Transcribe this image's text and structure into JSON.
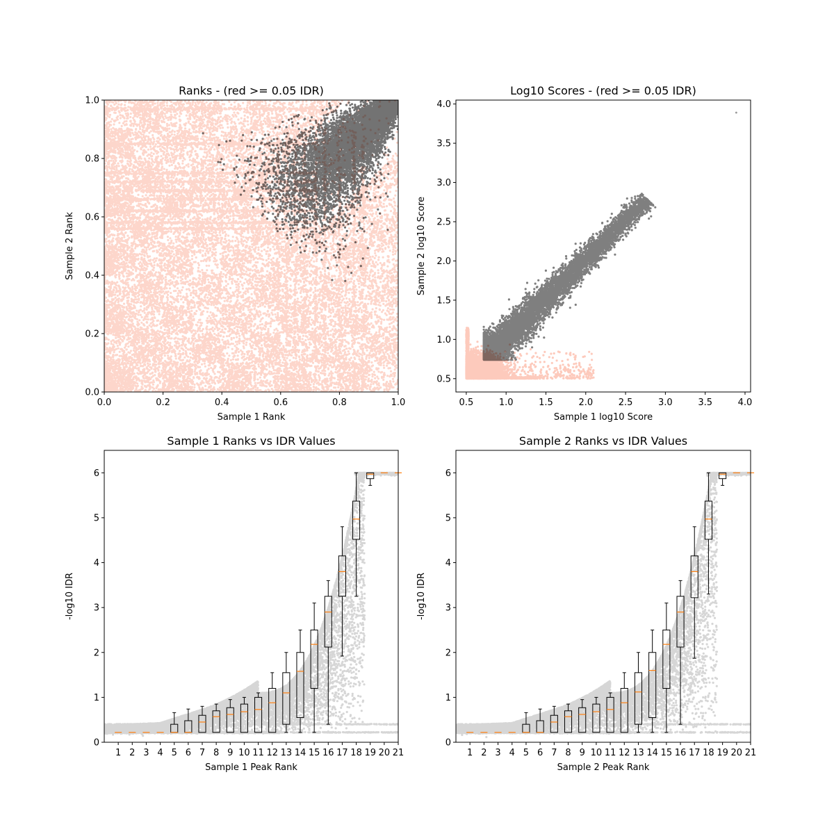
{
  "colors": {
    "red": "#FA8A6A",
    "black": "#000000",
    "median": "#FF7F0E"
  },
  "chart_data": [
    {
      "id": "ranks",
      "type": "scatter",
      "title": "Ranks - (red >= 0.05 IDR)",
      "xlabel": "Sample 1 Rank",
      "ylabel": "Sample 2 Rank",
      "xlim": [
        0,
        1
      ],
      "ylim": [
        0,
        1
      ],
      "xticks": [
        "0.0",
        "0.2",
        "0.4",
        "0.6",
        "0.8",
        "1.0"
      ],
      "yticks": [
        "0.0",
        "0.2",
        "0.4",
        "0.6",
        "0.8",
        "1.0"
      ],
      "series": [
        {
          "color": "red",
          "pattern": "rank grid blocks, density decreasing with rank"
        },
        {
          "color": "black",
          "pattern": "diagonal wedge from (0.55, 0.55) to (1.0, 1.0)"
        }
      ]
    },
    {
      "id": "scores",
      "type": "scatter",
      "title": "Log10 Scores - (red >= 0.05 IDR)",
      "xlabel": "Sample 1 log10 Score",
      "ylabel": "Sample 2 log10 Score",
      "xlim": [
        0.37,
        4.07
      ],
      "ylim": [
        0.33,
        4.05
      ],
      "xticks": [
        "0.5",
        "1.0",
        "1.5",
        "2.0",
        "2.5",
        "3.0",
        "3.5",
        "4.0"
      ],
      "yticks": [
        "0.5",
        "1.0",
        "1.5",
        "2.0",
        "2.5",
        "3.0",
        "3.5",
        "4.0"
      ],
      "series": [
        {
          "color": "red",
          "pattern": "cluster near (0.5-1.2, 0.5-1.0)"
        },
        {
          "color": "black",
          "pattern": "diagonal band from (0.72, 0.72) to (2.8, 2.8)"
        }
      ],
      "outlier": [
        3.89,
        3.89
      ]
    },
    {
      "id": "idr1",
      "type": "scatter",
      "title": "Sample 1 Ranks vs IDR Values",
      "xlabel": "Sample 1 Peak Rank",
      "ylabel": "-log10 IDR",
      "xlim": [
        0,
        21
      ],
      "ylim": [
        0,
        6.5
      ],
      "xticks": [
        "1",
        "2",
        "3",
        "4",
        "5",
        "6",
        "7",
        "8",
        "9",
        "10",
        "11",
        "12",
        "13",
        "14",
        "15",
        "16",
        "17",
        "18",
        "19",
        "20",
        "21"
      ],
      "yticks": [
        "0",
        "1",
        "2",
        "3",
        "4",
        "5",
        "6"
      ],
      "boxes": [
        {
          "x": 1,
          "q1": 0.22,
          "med": 0.22,
          "q3": 0.22,
          "lo": 0.22,
          "hi": 0.22
        },
        {
          "x": 2,
          "q1": 0.22,
          "med": 0.22,
          "q3": 0.22,
          "lo": 0.22,
          "hi": 0.22
        },
        {
          "x": 3,
          "q1": 0.22,
          "med": 0.22,
          "q3": 0.22,
          "lo": 0.22,
          "hi": 0.22
        },
        {
          "x": 4,
          "q1": 0.22,
          "med": 0.22,
          "q3": 0.22,
          "lo": 0.22,
          "hi": 0.22
        },
        {
          "x": 5,
          "q1": 0.22,
          "med": 0.22,
          "q3": 0.4,
          "lo": 0.22,
          "hi": 0.66
        },
        {
          "x": 6,
          "q1": 0.22,
          "med": 0.22,
          "q3": 0.48,
          "lo": 0.22,
          "hi": 0.74
        },
        {
          "x": 7,
          "q1": 0.22,
          "med": 0.45,
          "q3": 0.6,
          "lo": 0.22,
          "hi": 0.8
        },
        {
          "x": 8,
          "q1": 0.22,
          "med": 0.57,
          "q3": 0.7,
          "lo": 0.22,
          "hi": 0.85
        },
        {
          "x": 9,
          "q1": 0.22,
          "med": 0.62,
          "q3": 0.77,
          "lo": 0.22,
          "hi": 0.95
        },
        {
          "x": 10,
          "q1": 0.22,
          "med": 0.68,
          "q3": 0.85,
          "lo": 0.22,
          "hi": 1.0
        },
        {
          "x": 11,
          "q1": 0.22,
          "med": 0.73,
          "q3": 1.0,
          "lo": 0.22,
          "hi": 1.1
        },
        {
          "x": 12,
          "q1": 0.22,
          "med": 0.88,
          "q3": 1.2,
          "lo": 0.22,
          "hi": 1.55
        },
        {
          "x": 13,
          "q1": 0.4,
          "med": 1.1,
          "q3": 1.55,
          "lo": 0.22,
          "hi": 2.0
        },
        {
          "x": 14,
          "q1": 0.55,
          "med": 1.58,
          "q3": 2.0,
          "lo": 0.22,
          "hi": 2.5
        },
        {
          "x": 15,
          "q1": 1.2,
          "med": 2.18,
          "q3": 2.5,
          "lo": 0.22,
          "hi": 3.1
        },
        {
          "x": 16,
          "q1": 2.12,
          "med": 2.9,
          "q3": 3.25,
          "lo": 0.4,
          "hi": 3.6
        },
        {
          "x": 17,
          "q1": 3.25,
          "med": 3.8,
          "q3": 4.15,
          "lo": 1.92,
          "hi": 4.8
        },
        {
          "x": 18,
          "q1": 4.52,
          "med": 4.97,
          "q3": 5.37,
          "lo": 3.25,
          "hi": 6.0
        },
        {
          "x": 19,
          "q1": 5.87,
          "med": 5.97,
          "q3": 6.0,
          "lo": 5.72,
          "hi": 6.0
        },
        {
          "x": 20,
          "q1": 6.0,
          "med": 6.0,
          "q3": 6.0,
          "lo": 6.0,
          "hi": 6.0
        },
        {
          "x": 21,
          "q1": 6.0,
          "med": 6.0,
          "q3": 6.0,
          "lo": 6.0,
          "hi": 6.0
        }
      ]
    },
    {
      "id": "idr2",
      "type": "scatter",
      "title": "Sample 2 Ranks vs IDR Values",
      "xlabel": "Sample 2 Peak Rank",
      "ylabel": "-log10 IDR",
      "xlim": [
        0,
        21
      ],
      "ylim": [
        0,
        6.5
      ],
      "xticks": [
        "1",
        "2",
        "3",
        "4",
        "5",
        "6",
        "7",
        "8",
        "9",
        "10",
        "11",
        "12",
        "13",
        "14",
        "15",
        "16",
        "17",
        "18",
        "19",
        "20",
        "21"
      ],
      "yticks": [
        "0",
        "1",
        "2",
        "3",
        "4",
        "5",
        "6"
      ],
      "boxes": [
        {
          "x": 1,
          "q1": 0.22,
          "med": 0.22,
          "q3": 0.22,
          "lo": 0.22,
          "hi": 0.22
        },
        {
          "x": 2,
          "q1": 0.22,
          "med": 0.22,
          "q3": 0.22,
          "lo": 0.22,
          "hi": 0.22
        },
        {
          "x": 3,
          "q1": 0.22,
          "med": 0.22,
          "q3": 0.22,
          "lo": 0.22,
          "hi": 0.22
        },
        {
          "x": 4,
          "q1": 0.22,
          "med": 0.22,
          "q3": 0.22,
          "lo": 0.22,
          "hi": 0.22
        },
        {
          "x": 5,
          "q1": 0.22,
          "med": 0.22,
          "q3": 0.4,
          "lo": 0.22,
          "hi": 0.66
        },
        {
          "x": 6,
          "q1": 0.22,
          "med": 0.22,
          "q3": 0.48,
          "lo": 0.22,
          "hi": 0.74
        },
        {
          "x": 7,
          "q1": 0.22,
          "med": 0.45,
          "q3": 0.6,
          "lo": 0.22,
          "hi": 0.8
        },
        {
          "x": 8,
          "q1": 0.22,
          "med": 0.57,
          "q3": 0.7,
          "lo": 0.22,
          "hi": 0.85
        },
        {
          "x": 9,
          "q1": 0.22,
          "med": 0.62,
          "q3": 0.77,
          "lo": 0.22,
          "hi": 0.95
        },
        {
          "x": 10,
          "q1": 0.22,
          "med": 0.68,
          "q3": 0.85,
          "lo": 0.22,
          "hi": 1.0
        },
        {
          "x": 11,
          "q1": 0.22,
          "med": 0.73,
          "q3": 1.0,
          "lo": 0.22,
          "hi": 1.1
        },
        {
          "x": 12,
          "q1": 0.22,
          "med": 0.88,
          "q3": 1.2,
          "lo": 0.22,
          "hi": 1.55
        },
        {
          "x": 13,
          "q1": 0.4,
          "med": 1.12,
          "q3": 1.55,
          "lo": 0.22,
          "hi": 2.0
        },
        {
          "x": 14,
          "q1": 0.55,
          "med": 1.6,
          "q3": 2.0,
          "lo": 0.22,
          "hi": 2.5
        },
        {
          "x": 15,
          "q1": 1.2,
          "med": 2.18,
          "q3": 2.5,
          "lo": 0.22,
          "hi": 3.1
        },
        {
          "x": 16,
          "q1": 2.12,
          "med": 2.9,
          "q3": 3.25,
          "lo": 0.4,
          "hi": 3.6
        },
        {
          "x": 17,
          "q1": 3.22,
          "med": 3.8,
          "q3": 4.15,
          "lo": 1.87,
          "hi": 4.8
        },
        {
          "x": 18,
          "q1": 4.52,
          "med": 4.97,
          "q3": 5.37,
          "lo": 3.3,
          "hi": 6.0
        },
        {
          "x": 19,
          "q1": 5.87,
          "med": 5.97,
          "q3": 6.0,
          "lo": 5.72,
          "hi": 6.0
        },
        {
          "x": 20,
          "q1": 6.0,
          "med": 6.0,
          "q3": 6.0,
          "lo": 6.0,
          "hi": 6.0
        },
        {
          "x": 21,
          "q1": 6.0,
          "med": 6.0,
          "q3": 6.0,
          "lo": 6.0,
          "hi": 6.0
        }
      ]
    }
  ]
}
